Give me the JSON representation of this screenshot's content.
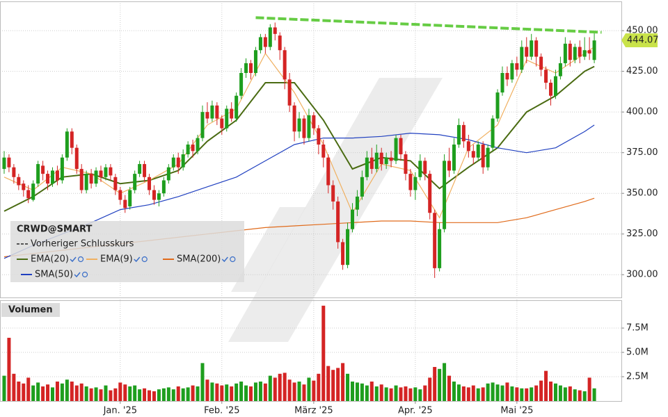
{
  "chart_data": {
    "type": "candlestick",
    "title": "CRWD@SMART",
    "xlim": [
      -0.86,
      127.6
    ],
    "xticks": [
      {
        "value": 24,
        "label": "Jan. '25"
      },
      {
        "value": 45,
        "label": "Feb. '25"
      },
      {
        "value": 64,
        "label": "März '25"
      },
      {
        "value": 85,
        "label": "Apr. '25"
      },
      {
        "value": 106,
        "label": "Mai '25"
      }
    ],
    "ylim": [
      286,
      468
    ],
    "yticks": [
      {
        "value": 300,
        "label": "300.00"
      },
      {
        "value": 325,
        "label": "325.00"
      },
      {
        "value": 350,
        "label": "350.00"
      },
      {
        "value": 375,
        "label": "375.00"
      },
      {
        "value": 400,
        "label": "400.00"
      },
      {
        "value": 425,
        "label": "425.00"
      },
      {
        "value": 450,
        "label": "450.00"
      }
    ],
    "grid": true,
    "up_color": "#1e9e1e",
    "down_color": "#d42424",
    "open": [
      365,
      372,
      366,
      360,
      356,
      352,
      346,
      356,
      367,
      362,
      356,
      364,
      358,
      372,
      388,
      378,
      365,
      352,
      362,
      356,
      364,
      360,
      366,
      360,
      352,
      346,
      342,
      352,
      362,
      368,
      360,
      352,
      346,
      350,
      358,
      366,
      372,
      366,
      374,
      380,
      376,
      384,
      400,
      396,
      404,
      396,
      390,
      402,
      396,
      410,
      424,
      430,
      424,
      438,
      446,
      440,
      452,
      447,
      438,
      420,
      404,
      388,
      396,
      384,
      398,
      390,
      380,
      372,
      355,
      345,
      320,
      306,
      328,
      340,
      348,
      360,
      372,
      365,
      375,
      368,
      372,
      370,
      384,
      374,
      362,
      352,
      360,
      370,
      362,
      338,
      304,
      328,
      370,
      364,
      380,
      392,
      382,
      376,
      372,
      380,
      366,
      378,
      396,
      412,
      424,
      420,
      430,
      426,
      440,
      434,
      444,
      434,
      426,
      418,
      410,
      422,
      430,
      442,
      432,
      440,
      434,
      438,
      432
    ],
    "high": [
      376,
      374,
      368,
      362,
      358,
      355,
      358,
      370,
      370,
      364,
      366,
      367,
      374,
      390,
      390,
      380,
      368,
      364,
      365,
      366,
      367,
      368,
      368,
      362,
      354,
      349,
      354,
      364,
      370,
      370,
      362,
      355,
      352,
      360,
      368,
      374,
      375,
      377,
      382,
      383,
      386,
      404,
      406,
      407,
      406,
      398,
      404,
      406,
      412,
      427,
      433,
      432,
      440,
      448,
      448,
      454,
      455,
      449,
      440,
      424,
      406,
      400,
      398,
      402,
      400,
      392,
      383,
      374,
      358,
      348,
      322,
      332,
      344,
      352,
      364,
      376,
      378,
      380,
      378,
      375,
      376,
      386,
      386,
      376,
      365,
      363,
      374,
      372,
      364,
      340,
      332,
      374,
      378,
      384,
      396,
      394,
      386,
      380,
      382,
      382,
      380,
      398,
      414,
      428,
      428,
      432,
      434,
      444,
      446,
      448,
      446,
      436,
      428,
      420,
      426,
      434,
      446,
      444,
      442,
      444,
      446,
      446,
      449
    ],
    "low": [
      362,
      363,
      356,
      352,
      348,
      344,
      345,
      354,
      358,
      352,
      354,
      355,
      356,
      370,
      374,
      362,
      350,
      350,
      353,
      354,
      357,
      358,
      358,
      349,
      343,
      338,
      340,
      350,
      360,
      357,
      349,
      343,
      342,
      348,
      356,
      364,
      362,
      364,
      372,
      372,
      374,
      382,
      393,
      394,
      392,
      386,
      388,
      394,
      394,
      408,
      421,
      420,
      422,
      436,
      436,
      438,
      444,
      432,
      414,
      400,
      382,
      384,
      380,
      382,
      386,
      374,
      366,
      350,
      340,
      316,
      303,
      304,
      326,
      336,
      346,
      358,
      362,
      363,
      364,
      365,
      366,
      368,
      370,
      358,
      348,
      346,
      358,
      358,
      334,
      298,
      302,
      326,
      360,
      362,
      378,
      378,
      372,
      368,
      370,
      362,
      364,
      376,
      394,
      410,
      416,
      418,
      422,
      424,
      430,
      432,
      428,
      422,
      414,
      404,
      408,
      420,
      428,
      428,
      430,
      430,
      432,
      432,
      430
    ],
    "close": [
      372,
      366,
      360,
      355,
      352,
      347,
      356,
      368,
      362,
      356,
      364,
      358,
      372,
      388,
      378,
      365,
      352,
      362,
      356,
      364,
      360,
      366,
      361,
      352,
      346,
      341,
      352,
      362,
      368,
      360,
      352,
      346,
      350,
      358,
      366,
      372,
      366,
      374,
      380,
      376,
      384,
      400,
      396,
      404,
      396,
      390,
      402,
      396,
      410,
      424,
      430,
      424,
      438,
      446,
      440,
      452,
      448,
      438,
      420,
      404,
      388,
      396,
      384,
      398,
      390,
      380,
      372,
      355,
      345,
      320,
      306,
      328,
      340,
      348,
      360,
      372,
      365,
      375,
      368,
      372,
      370,
      384,
      374,
      362,
      352,
      360,
      370,
      362,
      338,
      304,
      328,
      370,
      364,
      380,
      392,
      382,
      376,
      372,
      380,
      366,
      378,
      396,
      412,
      424,
      420,
      430,
      426,
      440,
      434,
      444,
      434,
      426,
      418,
      410,
      422,
      430,
      442,
      432,
      440,
      434,
      438,
      436,
      444
    ],
    "last_price": 444.07,
    "last_price_color": "#c9e34a",
    "previous_close": {
      "name": "Vorheriger Schlusskurs",
      "color": "#555555"
    },
    "trendline": {
      "color": "#66cc44",
      "x": [
        52,
        123.5
      ],
      "values": [
        458,
        449
      ]
    },
    "series": [
      {
        "name": "EMA(20)",
        "color": "#4a6b12",
        "x": [
          0,
          6,
          12,
          18,
          24,
          30,
          36,
          42,
          48,
          54,
          60,
          66,
          72,
          78,
          84,
          90,
          96,
          102,
          108,
          114,
          120,
          122
        ],
        "values": [
          339,
          348,
          360,
          362,
          356,
          358,
          364,
          382,
          395,
          418,
          418,
          395,
          365,
          372,
          370,
          353,
          366,
          378,
          400,
          410,
          425,
          428
        ]
      },
      {
        "name": "EMA(9)",
        "color": "#f0b060",
        "x": [
          0,
          6,
          12,
          18,
          24,
          30,
          36,
          42,
          48,
          54,
          60,
          66,
          72,
          78,
          84,
          90,
          96,
          102,
          108,
          114,
          120,
          122
        ],
        "values": [
          360,
          352,
          366,
          362,
          350,
          358,
          368,
          392,
          402,
          436,
          412,
          380,
          338,
          368,
          364,
          335,
          378,
          392,
          432,
          424,
          436,
          440
        ]
      },
      {
        "name": "SMA(200)",
        "color": "#e06a1a",
        "x": [
          0,
          6,
          12,
          18,
          24,
          30,
          36,
          42,
          48,
          54,
          60,
          66,
          72,
          78,
          84,
          90,
          96,
          102,
          108,
          114,
          120,
          122
        ],
        "values": [
          311,
          313,
          315,
          317,
          319,
          321,
          323,
          325,
          327,
          329,
          330,
          331,
          332,
          333,
          333,
          332,
          332,
          332,
          335,
          340,
          345,
          347
        ]
      },
      {
        "name": "SMA(50)",
        "color": "#2040c0",
        "x": [
          0,
          6,
          12,
          18,
          24,
          30,
          36,
          42,
          48,
          54,
          60,
          66,
          72,
          78,
          84,
          90,
          96,
          102,
          108,
          114,
          120,
          122
        ],
        "values": [
          310,
          318,
          325,
          332,
          340,
          343,
          348,
          354,
          360,
          370,
          380,
          384,
          384,
          385,
          387,
          386,
          383,
          378,
          375,
          378,
          388,
          392
        ]
      }
    ],
    "volume": {
      "label": "Volumen",
      "ylim": [
        0,
        10.36
      ],
      "yticks": [
        {
          "value": 2.5,
          "label": "2.5M"
        },
        {
          "value": 5,
          "label": "5.0M"
        },
        {
          "value": 7.5,
          "label": "7.5M"
        }
      ],
      "values": [
        2.6,
        6.5,
        2.8,
        2.0,
        1.8,
        2.4,
        1.6,
        1.9,
        1.5,
        1.7,
        1.4,
        2.0,
        1.8,
        2.2,
        2.0,
        1.6,
        1.8,
        1.5,
        1.3,
        1.4,
        1.2,
        1.6,
        1.1,
        1.3,
        1.9,
        1.7,
        1.5,
        1.6,
        1.2,
        1.3,
        1.1,
        1.0,
        1.2,
        1.3,
        1.4,
        1.2,
        1.5,
        1.3,
        1.4,
        1.6,
        1.5,
        3.9,
        2.2,
        1.9,
        1.8,
        1.6,
        1.7,
        1.5,
        1.8,
        2.0,
        1.6,
        1.5,
        1.9,
        2.0,
        1.8,
        2.6,
        2.4,
        2.8,
        2.9,
        2.2,
        1.9,
        2.0,
        1.7,
        2.4,
        2.1,
        2.8,
        9.8,
        3.6,
        3.2,
        3.4,
        3.9,
        2.8,
        2.0,
        1.9,
        1.8,
        1.6,
        2.0,
        1.5,
        1.7,
        1.4,
        1.3,
        1.6,
        1.4,
        1.5,
        1.3,
        1.4,
        1.2,
        1.6,
        2.4,
        3.5,
        3.3,
        3.9,
        2.6,
        2.0,
        1.7,
        1.5,
        1.4,
        1.6,
        1.3,
        1.4,
        1.8,
        1.9,
        1.7,
        1.6,
        1.9,
        1.5,
        1.4,
        1.3,
        1.3,
        1.4,
        1.6,
        2.1,
        3.1,
        2.0,
        1.8,
        1.6,
        1.4,
        1.5,
        1.2,
        1.1,
        1.0,
        2.4,
        1.3
      ]
    }
  }
}
